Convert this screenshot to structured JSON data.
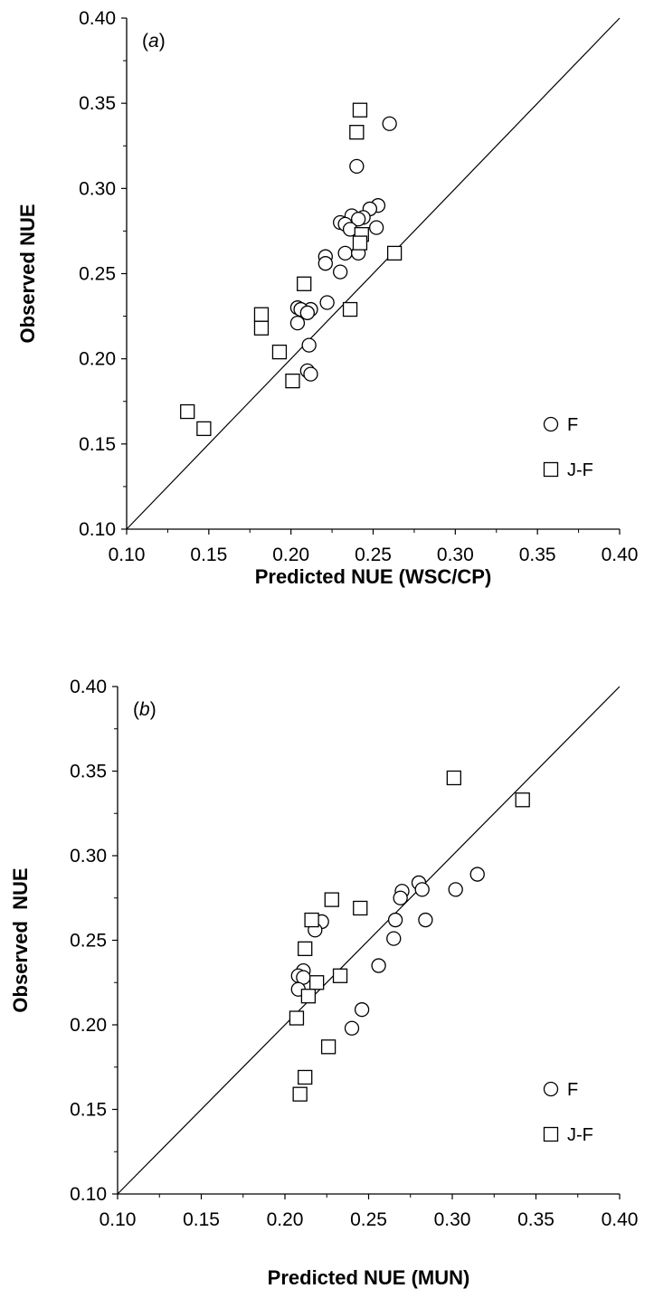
{
  "chart_data": [
    {
      "type": "scatter",
      "panel_label_prefix": "(",
      "panel_label_letter": "a",
      "panel_label_suffix": ")",
      "xlabel": "Predicted NUE (WSC/CP)",
      "ylabel": "Observed NUE",
      "xlim": [
        0.1,
        0.4
      ],
      "ylim": [
        0.1,
        0.4
      ],
      "xticks": [
        "0.10",
        "0.15",
        "0.20",
        "0.25",
        "0.30",
        "0.35",
        "0.40"
      ],
      "yticks": [
        "0.10",
        "0.15",
        "0.20",
        "0.25",
        "0.30",
        "0.35",
        "0.40"
      ],
      "reference_line": "1:1",
      "legend_position": "bottom-right",
      "series": [
        {
          "name": "F",
          "marker": "circle",
          "points": [
            [
              0.26,
              0.338
            ],
            [
              0.24,
              0.313
            ],
            [
              0.253,
              0.29
            ],
            [
              0.248,
              0.288
            ],
            [
              0.237,
              0.284
            ],
            [
              0.244,
              0.283
            ],
            [
              0.241,
              0.282
            ],
            [
              0.23,
              0.28
            ],
            [
              0.233,
              0.279
            ],
            [
              0.236,
              0.276
            ],
            [
              0.252,
              0.277
            ],
            [
              0.233,
              0.262
            ],
            [
              0.241,
              0.262
            ],
            [
              0.221,
              0.26
            ],
            [
              0.221,
              0.256
            ],
            [
              0.23,
              0.251
            ],
            [
              0.222,
              0.233
            ],
            [
              0.204,
              0.23
            ],
            [
              0.212,
              0.229
            ],
            [
              0.206,
              0.229
            ],
            [
              0.21,
              0.227
            ],
            [
              0.204,
              0.221
            ],
            [
              0.211,
              0.208
            ],
            [
              0.21,
              0.193
            ],
            [
              0.212,
              0.191
            ]
          ]
        },
        {
          "name": "J-F",
          "marker": "square",
          "points": [
            [
              0.242,
              0.346
            ],
            [
              0.24,
              0.333
            ],
            [
              0.243,
              0.273
            ],
            [
              0.242,
              0.268
            ],
            [
              0.263,
              0.262
            ],
            [
              0.208,
              0.244
            ],
            [
              0.236,
              0.229
            ],
            [
              0.182,
              0.226
            ],
            [
              0.182,
              0.218
            ],
            [
              0.193,
              0.204
            ],
            [
              0.201,
              0.187
            ],
            [
              0.137,
              0.169
            ],
            [
              0.147,
              0.159
            ]
          ]
        }
      ]
    },
    {
      "type": "scatter",
      "panel_label_prefix": "(",
      "panel_label_letter": "b",
      "panel_label_suffix": ")",
      "xlabel": "Predicted NUE (MUN)",
      "ylabel": "Observed  NUE",
      "xlim": [
        0.1,
        0.4
      ],
      "ylim": [
        0.1,
        0.4
      ],
      "xticks": [
        "0.10",
        "0.15",
        "0.20",
        "0.25",
        "0.30",
        "0.35",
        "0.40"
      ],
      "yticks": [
        "0.10",
        "0.15",
        "0.20",
        "0.25",
        "0.30",
        "0.35",
        "0.40"
      ],
      "reference_line": "1:1",
      "legend_position": "bottom-right",
      "series": [
        {
          "name": "F",
          "marker": "circle",
          "points": [
            [
              0.315,
              0.289
            ],
            [
              0.28,
              0.284
            ],
            [
              0.282,
              0.28
            ],
            [
              0.302,
              0.28
            ],
            [
              0.27,
              0.279
            ],
            [
              0.269,
              0.275
            ],
            [
              0.266,
              0.262
            ],
            [
              0.284,
              0.262
            ],
            [
              0.222,
              0.261
            ],
            [
              0.218,
              0.256
            ],
            [
              0.265,
              0.251
            ],
            [
              0.256,
              0.235
            ],
            [
              0.211,
              0.232
            ],
            [
              0.208,
              0.229
            ],
            [
              0.211,
              0.228
            ],
            [
              0.208,
              0.221
            ],
            [
              0.246,
              0.209
            ],
            [
              0.24,
              0.198
            ]
          ]
        },
        {
          "name": "J-F",
          "marker": "square",
          "points": [
            [
              0.301,
              0.346
            ],
            [
              0.342,
              0.333
            ],
            [
              0.228,
              0.274
            ],
            [
              0.245,
              0.269
            ],
            [
              0.216,
              0.262
            ],
            [
              0.212,
              0.245
            ],
            [
              0.233,
              0.229
            ],
            [
              0.219,
              0.225
            ],
            [
              0.214,
              0.217
            ],
            [
              0.207,
              0.204
            ],
            [
              0.226,
              0.187
            ],
            [
              0.212,
              0.169
            ],
            [
              0.209,
              0.159
            ]
          ]
        }
      ]
    }
  ]
}
